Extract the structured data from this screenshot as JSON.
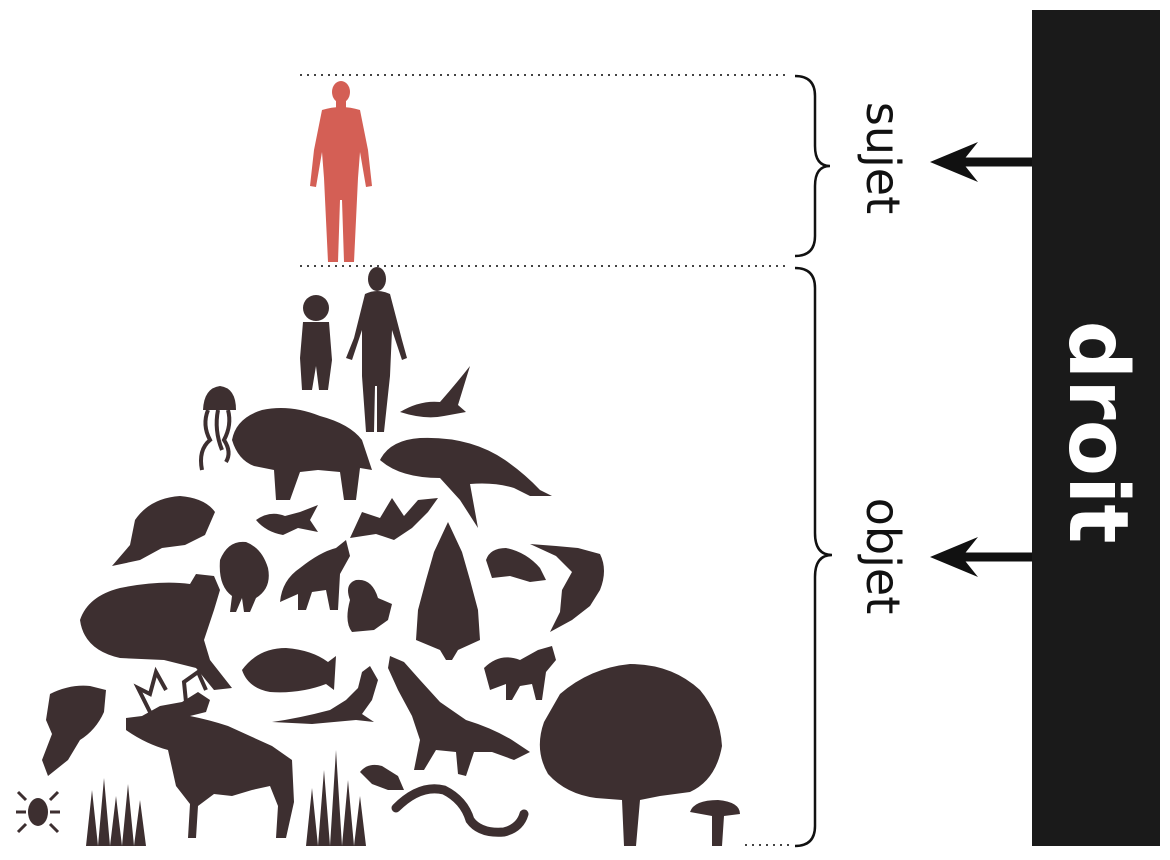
{
  "labels": {
    "sujet": "sujet",
    "objet": "objet",
    "droit": "droit"
  },
  "colors": {
    "human_subject": "#d45f55",
    "silhouettes": "#3d2f30",
    "bar": "#1a1a1a",
    "bar_text": "#ffffff",
    "lines": "#111111"
  },
  "icons": [
    "human-figure-icon",
    "child-icon",
    "woman-icon",
    "eagle-icon",
    "jellyfish-icon",
    "bison-icon",
    "whale-icon",
    "beaver-icon",
    "fish-icon",
    "bat-icon",
    "chicken-icon",
    "fox-icon",
    "pine-tree-icon",
    "frog-icon",
    "shark-icon",
    "squirrel-icon",
    "sea-lion-icon",
    "piranha-icon",
    "lizard-icon",
    "wolf-icon",
    "jackal-icon",
    "oak-tree-icon",
    "goldfish-icon",
    "elk-icon",
    "grass-icon",
    "flowers-icon",
    "mouse-icon",
    "snake-icon",
    "mushroom-icon",
    "tick-icon"
  ]
}
